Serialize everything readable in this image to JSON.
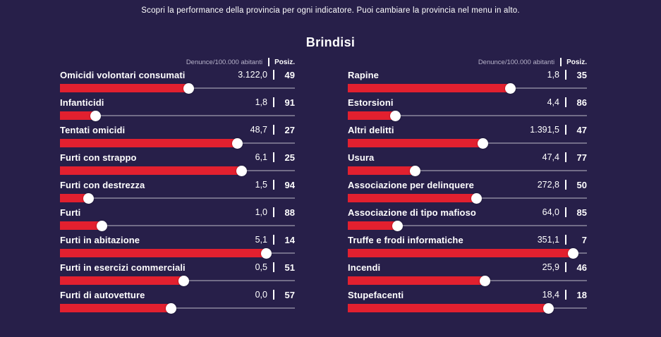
{
  "page": {
    "note": "Scopri la performance della provincia per ogni indicatore. Puoi cambiare la provincia nel menu in alto.",
    "title": "Brindisi"
  },
  "header": {
    "metric": "Denunce/100.000 abitanti",
    "rank": "Posiz."
  },
  "colors": {
    "background": "#271f49",
    "bar": "#e2202f",
    "knob": "#ffffff",
    "track": "rgba(255,255,255,0.35)"
  },
  "chart_data": {
    "type": "bar",
    "title": "Brindisi",
    "value_unit": "Denunce/100.000 abitanti",
    "rank_label": "Posiz.",
    "legend_position": "none",
    "grid": false,
    "columns": [
      {
        "rows": [
          {
            "label": "Omicidi volontari consumati",
            "value": "3.122,0",
            "rank": "49",
            "fill_pct": 54.7
          },
          {
            "label": "Infanticidi",
            "value": "1,8",
            "rank": "91",
            "fill_pct": 15.1
          },
          {
            "label": "Tentati omicidi",
            "value": "48,7",
            "rank": "27",
            "fill_pct": 75.5
          },
          {
            "label": "Furti con strappo",
            "value": "6,1",
            "rank": "25",
            "fill_pct": 77.4
          },
          {
            "label": "Furti con destrezza",
            "value": "1,5",
            "rank": "94",
            "fill_pct": 12.3
          },
          {
            "label": "Furti",
            "value": "1,0",
            "rank": "88",
            "fill_pct": 17.9
          },
          {
            "label": "Furti in abitazione",
            "value": "5,1",
            "rank": "14",
            "fill_pct": 87.7
          },
          {
            "label": "Furti in esercizi commerciali",
            "value": "0,5",
            "rank": "51",
            "fill_pct": 52.8
          },
          {
            "label": "Furti di autovetture",
            "value": "0,0",
            "rank": "57",
            "fill_pct": 47.2
          }
        ]
      },
      {
        "rows": [
          {
            "label": "Rapine",
            "value": "1,8",
            "rank": "35",
            "fill_pct": 67.9
          },
          {
            "label": "Estorsioni",
            "value": "4,4",
            "rank": "86",
            "fill_pct": 19.8
          },
          {
            "label": "Altri delitti",
            "value": "1.391,5",
            "rank": "47",
            "fill_pct": 56.6
          },
          {
            "label": "Usura",
            "value": "47,4",
            "rank": "77",
            "fill_pct": 28.3
          },
          {
            "label": "Associazione per delinquere",
            "value": "272,8",
            "rank": "50",
            "fill_pct": 53.8
          },
          {
            "label": "Associazione di tipo mafioso",
            "value": "64,0",
            "rank": "85",
            "fill_pct": 20.8
          },
          {
            "label": "Truffe e frodi informatiche",
            "value": "351,1",
            "rank": "7",
            "fill_pct": 94.3
          },
          {
            "label": "Incendi",
            "value": "25,9",
            "rank": "46",
            "fill_pct": 57.5
          },
          {
            "label": "Stupefacenti",
            "value": "18,4",
            "rank": "18",
            "fill_pct": 84.0
          }
        ]
      }
    ]
  }
}
